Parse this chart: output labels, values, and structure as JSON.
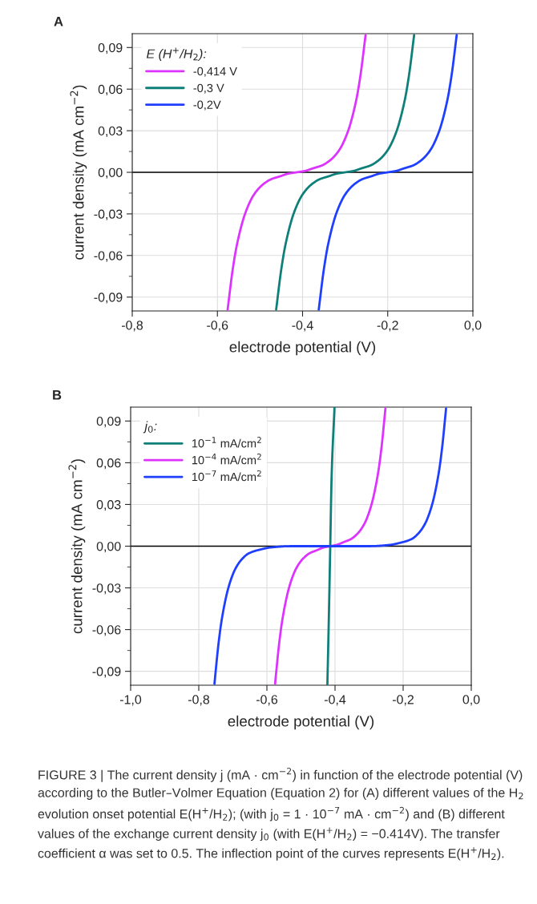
{
  "chart_data": [
    {
      "type": "line",
      "xlabel": "electrode potential (V)",
      "ylabel": "current density (mA cm$^{−2}$)",
      "legend_title": "E (H$^{+}$/H$_{2}$):",
      "legend": "top left",
      "grid": true,
      "xlim": [
        -0.8,
        0.0
      ],
      "xticks": [
        {
          "value": -0.8,
          "label": "-0,8"
        },
        {
          "value": -0.6,
          "label": "-0,6"
        },
        {
          "value": -0.4,
          "label": "-0,4"
        },
        {
          "value": -0.2,
          "label": "-0,2"
        },
        {
          "value": 0.0,
          "label": "0,0"
        }
      ],
      "ylim": [
        -0.1,
        0.1
      ],
      "yticks": [
        {
          "value": -0.09,
          "label": "-0,09"
        },
        {
          "value": -0.06,
          "label": "-0,06"
        },
        {
          "value": -0.03,
          "label": "-0,03"
        },
        {
          "value": 0.0,
          "label": "0,00"
        },
        {
          "value": 0.03,
          "label": "0,03"
        },
        {
          "value": 0.06,
          "label": "0,06"
        },
        {
          "value": 0.09,
          "label": "0,09"
        }
      ],
      "ref_lines": [
        {
          "axis": "y",
          "value": 0,
          "color": "#000000"
        }
      ],
      "annotations": [
        "A"
      ],
      "series": [
        {
          "name": "-0,414 V",
          "color": "#dd33ff",
          "x": [
            -0.576,
            -0.564,
            -0.554,
            -0.534,
            -0.514,
            -0.494,
            -0.474,
            -0.454,
            -0.434,
            -0.414,
            -0.394,
            -0.374,
            -0.354,
            -0.334,
            -0.314,
            -0.294,
            -0.274,
            -0.264,
            -0.252
          ],
          "values": [
            -0.099,
            -0.07,
            -0.052,
            -0.029,
            -0.016,
            -0.009,
            -0.005,
            -0.003,
            -0.001,
            0.0,
            0.001,
            0.003,
            0.005,
            0.009,
            0.016,
            0.029,
            0.052,
            0.07,
            0.099
          ]
        },
        {
          "name": "-0,3 V",
          "color": "#0f7f7a",
          "x": [
            -0.462,
            -0.45,
            -0.44,
            -0.42,
            -0.4,
            -0.38,
            -0.36,
            -0.34,
            -0.32,
            -0.3,
            -0.28,
            -0.26,
            -0.24,
            -0.22,
            -0.2,
            -0.18,
            -0.16,
            -0.15,
            -0.138
          ],
          "values": [
            -0.099,
            -0.07,
            -0.052,
            -0.029,
            -0.016,
            -0.009,
            -0.005,
            -0.003,
            -0.001,
            0.0,
            0.001,
            0.003,
            0.005,
            0.009,
            0.016,
            0.029,
            0.052,
            0.07,
            0.099
          ]
        },
        {
          "name": "-0,2V",
          "color": "#1f3fff",
          "x": [
            -0.362,
            -0.35,
            -0.34,
            -0.32,
            -0.3,
            -0.28,
            -0.26,
            -0.24,
            -0.22,
            -0.2,
            -0.18,
            -0.16,
            -0.14,
            -0.12,
            -0.1,
            -0.08,
            -0.06,
            -0.05,
            -0.038
          ],
          "values": [
            -0.099,
            -0.07,
            -0.052,
            -0.029,
            -0.016,
            -0.009,
            -0.005,
            -0.003,
            -0.001,
            0.0,
            0.001,
            0.003,
            0.005,
            0.009,
            0.016,
            0.029,
            0.052,
            0.07,
            0.099
          ]
        }
      ]
    },
    {
      "type": "line",
      "xlabel": "electrode potential (V)",
      "ylabel": "current density (mA cm$^{−2}$)",
      "legend_title": "j$_{0}$:",
      "legend": "top left",
      "grid": true,
      "xlim": [
        -1.0,
        0.0
      ],
      "xticks": [
        {
          "value": -1.0,
          "label": "-1,0"
        },
        {
          "value": -0.8,
          "label": "-0,8"
        },
        {
          "value": -0.6,
          "label": "-0,6"
        },
        {
          "value": -0.4,
          "label": "-0,4"
        },
        {
          "value": -0.2,
          "label": "-0,2"
        },
        {
          "value": 0.0,
          "label": "0,0"
        }
      ],
      "ylim": [
        -0.1,
        0.1
      ],
      "yticks": [
        {
          "value": -0.09,
          "label": "-0,09"
        },
        {
          "value": -0.06,
          "label": "-0,06"
        },
        {
          "value": -0.03,
          "label": "-0,03"
        },
        {
          "value": 0.0,
          "label": "0,00"
        },
        {
          "value": 0.03,
          "label": "0,03"
        },
        {
          "value": 0.06,
          "label": "0,06"
        },
        {
          "value": 0.09,
          "label": "0,09"
        }
      ],
      "ref_lines": [
        {
          "axis": "y",
          "value": 0,
          "color": "#000000"
        }
      ],
      "annotations": [
        "B",
        "FIGURE 3 | The current density j (mA · cm$^{−2}$) in function of the electrode potential (V) according to the Butler–Volmer Equation (Equation 2) for (A) different values of the H$_{2}$ evolution onset potential E(H$^{+}$/H$_{2}$); (with j$_{0}$ = 1 · 10$^{−7}$ mA · cm$^{−2}$) and (B) different values of the exchange current density j$_{0}$ (with E(H$^{+}$/H$_{2}$) = −0.414V). The transfer coefficient α was set to 0.5. The inflection point of the curves represents E(H$^{+}$/H$_{2}$)."
      ],
      "series": [
        {
          "name": "10$^{−1}$ mA/cm$^{2}$",
          "color": "#0f7f7a",
          "x": [
            -0.4225,
            -0.418,
            -0.414,
            -0.41,
            -0.4015
          ],
          "values": [
            -0.1,
            -0.05,
            0.0,
            0.05,
            0.1
          ]
        },
        {
          "name": "10$^{−4}$ mA/cm$^{2}$",
          "color": "#dd33ff",
          "x": [
            -0.576,
            -0.564,
            -0.554,
            -0.534,
            -0.514,
            -0.494,
            -0.474,
            -0.454,
            -0.434,
            -0.414,
            -0.394,
            -0.374,
            -0.354,
            -0.334,
            -0.314,
            -0.294,
            -0.274,
            -0.264,
            -0.252
          ],
          "values": [
            -0.099,
            -0.07,
            -0.052,
            -0.029,
            -0.016,
            -0.009,
            -0.005,
            -0.003,
            -0.001,
            0.0,
            0.001,
            0.003,
            0.005,
            0.009,
            0.016,
            0.029,
            0.052,
            0.07,
            0.099
          ]
        },
        {
          "name": "10$^{−7}$ mA/cm$^{2}$",
          "color": "#1f3fff",
          "x": [
            -0.754,
            -0.742,
            -0.732,
            -0.712,
            -0.692,
            -0.672,
            -0.652,
            -0.612,
            -0.592,
            -0.528,
            -0.414,
            -0.3,
            -0.236,
            -0.216,
            -0.176,
            -0.156,
            -0.136,
            -0.116,
            -0.096,
            -0.086,
            -0.074
          ],
          "values": [
            -0.099,
            -0.07,
            -0.052,
            -0.029,
            -0.016,
            -0.009,
            -0.005,
            -0.002,
            -0.001,
            0.0,
            0.0,
            0.0,
            0.001,
            0.002,
            0.005,
            0.009,
            0.016,
            0.029,
            0.052,
            0.07,
            0.099
          ]
        }
      ]
    }
  ]
}
